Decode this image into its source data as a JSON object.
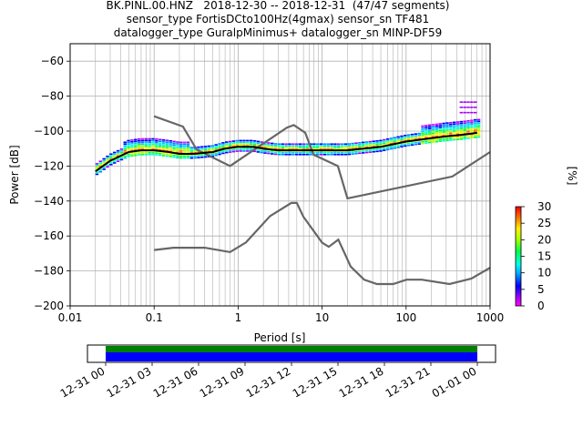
{
  "titles": [
    "BK.PINL.00.HNZ   2018-12-30 -- 2018-12-31  (47/47 segments)",
    "sensor_type FortisDCto100Hz(4gmax) sensor_sn TF481",
    "datalogger_type GuralpMinimus+ datalogger_sn MINP-DF59"
  ],
  "chart_data": {
    "type": "heatmap",
    "xlabel": "Period [s]",
    "ylabel": "Power [dB]",
    "xscale": "log",
    "xlim": [
      0.01,
      1000
    ],
    "ylim": [
      -200,
      -50
    ],
    "x_ticks": [
      "0.01",
      "0.1",
      "1",
      "10",
      "100",
      "1000"
    ],
    "y_ticks": [
      "−200",
      "−180",
      "−160",
      "−140",
      "−120",
      "−100",
      "−80",
      "−60"
    ],
    "grid": true,
    "colorbar": {
      "label": "[%]",
      "ticks": [
        "0",
        "5",
        "10",
        "15",
        "20",
        "25",
        "30"
      ],
      "range": [
        0,
        30
      ]
    },
    "mean_curve": {
      "x": [
        0.02,
        0.03,
        0.05,
        0.07,
        0.1,
        0.15,
        0.2,
        0.3,
        0.5,
        0.7,
        1,
        1.5,
        2,
        3,
        5,
        7,
        10,
        20,
        50,
        100,
        200,
        300,
        500,
        700
      ],
      "y": [
        -123,
        -117,
        -112,
        -111,
        -111,
        -112,
        -113,
        -113,
        -112,
        -110,
        -109,
        -109,
        -110,
        -111,
        -111,
        -111,
        -111,
        -111,
        -109,
        -106,
        -104,
        -103,
        -102,
        -101
      ]
    },
    "nhnm_curve": {
      "x": [
        0.1,
        0.22,
        0.32,
        0.8,
        3.8,
        4.6,
        6.3,
        7.9,
        15.4,
        20,
        354.8,
        1000
      ],
      "y": [
        -91.5,
        -97.4,
        -110.5,
        -120,
        -98,
        -96.5,
        -101,
        -113.5,
        -120,
        -138.5,
        -126,
        -112
      ]
    },
    "nlnm_curve": {
      "x": [
        0.1,
        0.17,
        0.4,
        0.8,
        1.24,
        2.4,
        4.3,
        5,
        6,
        10,
        12,
        15.6,
        21.9,
        31.6,
        45,
        70,
        101,
        154,
        328,
        600,
        1000
      ],
      "y": [
        -168,
        -166.7,
        -166.7,
        -169.2,
        -163.7,
        -148.6,
        -141.1,
        -141.1,
        -149,
        -163.8,
        -166.2,
        -162.1,
        -177.5,
        -185,
        -187.5,
        -187.5,
        -185,
        -185,
        -187.5,
        -184.4,
        -178.2
      ]
    },
    "time_axis": {
      "ticks": [
        "12-31 00",
        "12-31 03",
        "12-31 06",
        "12-31 09",
        "12-31 12",
        "12-31 15",
        "12-31 18",
        "12-31 21",
        "01-01 00"
      ],
      "bar_colors": [
        "#008000",
        "#0000ff"
      ]
    }
  }
}
